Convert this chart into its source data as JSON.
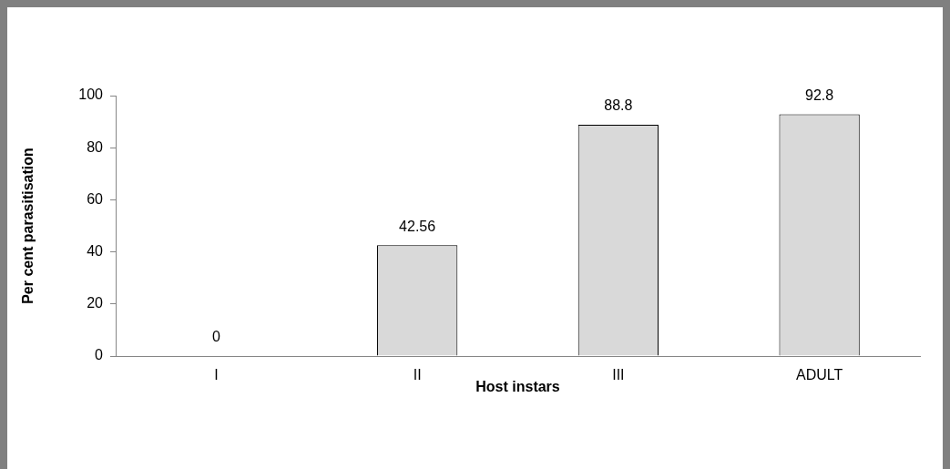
{
  "chart_data": {
    "type": "bar",
    "xlabel": "Host instars",
    "ylabel": "Per cent parasitisation",
    "categories": [
      "I",
      "II",
      "III",
      "ADULT"
    ],
    "values": [
      0,
      42.56,
      88.8,
      92.8
    ],
    "color": "#d9d9d9",
    "ylim": [
      0,
      100
    ],
    "yticks": [
      0,
      20,
      40,
      60,
      80,
      100
    ],
    "grid": false,
    "legend": false,
    "data_labels": true
  }
}
